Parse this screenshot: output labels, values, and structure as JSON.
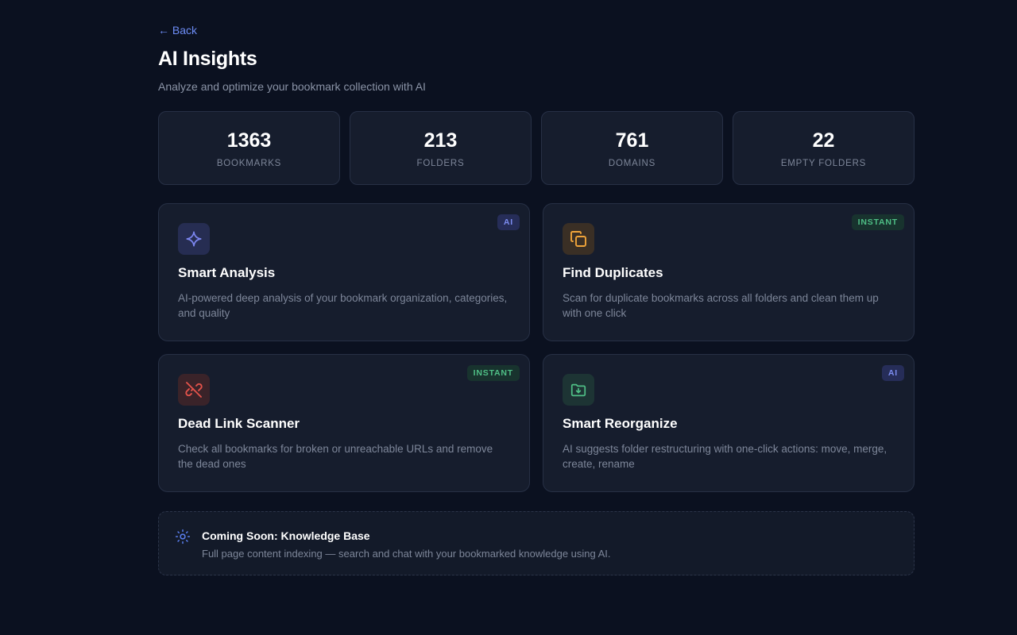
{
  "nav": {
    "back_label": "← Back"
  },
  "header": {
    "title": "AI Insights",
    "subtitle": "Analyze and optimize your bookmark collection with AI"
  },
  "stats": [
    {
      "value": "1363",
      "label": "BOOKMARKS"
    },
    {
      "value": "213",
      "label": "FOLDERS"
    },
    {
      "value": "761",
      "label": "DOMAINS"
    },
    {
      "value": "22",
      "label": "EMPTY FOLDERS"
    }
  ],
  "features": [
    {
      "title": "Smart Analysis",
      "description": "AI-powered deep analysis of your bookmark organization, categories, and quality",
      "badge": "AI",
      "icon": "sparkle-icon",
      "accent": "#7c86f0"
    },
    {
      "title": "Find Duplicates",
      "description": "Scan for duplicate bookmarks across all folders and clean them up with one click",
      "badge": "INSTANT",
      "icon": "copy-icon",
      "accent": "#f0a43a"
    },
    {
      "title": "Dead Link Scanner",
      "description": "Check all bookmarks for broken or unreachable URLs and remove the dead ones",
      "badge": "INSTANT",
      "icon": "broken-link-icon",
      "accent": "#e5534b"
    },
    {
      "title": "Smart Reorganize",
      "description": "AI suggests folder restructuring with one-click actions: move, merge, create, rename",
      "badge": "AI",
      "icon": "folder-download-icon",
      "accent": "#4fbf86"
    }
  ],
  "coming_soon": {
    "title": "Coming Soon: Knowledge Base",
    "description": "Full page content indexing — search and chat with your bookmarked knowledge using AI.",
    "icon": "sun-icon"
  },
  "colors": {
    "background": "#0b1120",
    "card": "#161d2d",
    "accent_link": "#6d8cf5",
    "badge_ai": "#7c8cf0",
    "badge_instant": "#4fbf86"
  }
}
